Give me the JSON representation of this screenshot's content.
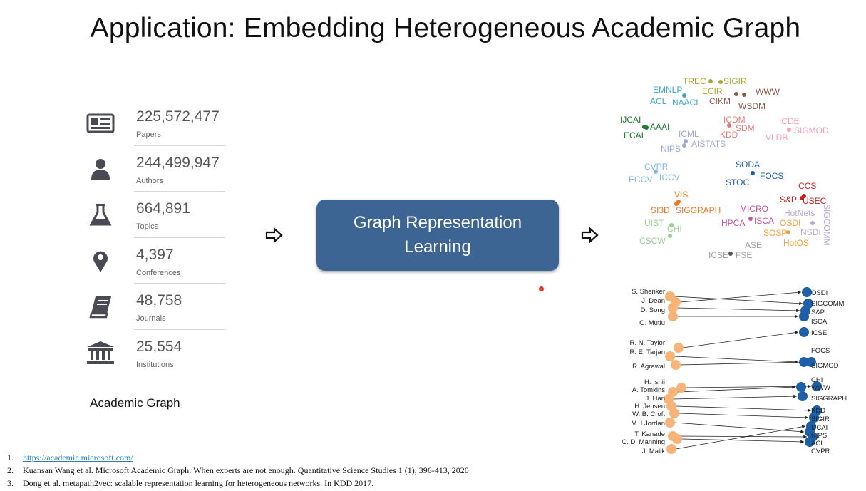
{
  "slide": {
    "title": "Application: Embedding Heterogeneous Academic Graph",
    "graph_caption": "Academic Graph",
    "center_box": {
      "line1": "Graph Representation",
      "line2": "Learning"
    }
  },
  "stats": [
    {
      "value": "225,572,477",
      "label": "Papers",
      "icon": "newspaper-icon"
    },
    {
      "value": "244,499,947",
      "label": "Authors",
      "icon": "person-icon"
    },
    {
      "value": "664,891",
      "label": "Topics",
      "icon": "flask-icon"
    },
    {
      "value": "4,397",
      "label": "Conferences",
      "icon": "location-pin-icon"
    },
    {
      "value": "48,758",
      "label": "Journals",
      "icon": "book-icon"
    },
    {
      "value": "25,554",
      "label": "Institutions",
      "icon": "institution-icon"
    }
  ],
  "scatter_labels": [
    {
      "text": "TREC",
      "color": "#a8a830"
    },
    {
      "text": "SIGIR",
      "color": "#a8a830"
    },
    {
      "text": "EMNLP",
      "color": "#3aa8c8"
    },
    {
      "text": "ECIR",
      "color": "#a8a830"
    },
    {
      "text": "WWW",
      "color": "#8b5a4a"
    },
    {
      "text": "ACL",
      "color": "#3aa8c8"
    },
    {
      "text": "NAACL",
      "color": "#3aa8c8"
    },
    {
      "text": "CIKM",
      "color": "#8b5a4a"
    },
    {
      "text": "WSDM",
      "color": "#8b5a4a"
    },
    {
      "text": "IJCAI",
      "color": "#1e7a2e"
    },
    {
      "text": "AAAI",
      "color": "#1e7a2e"
    },
    {
      "text": "ECAI",
      "color": "#1e7a2e"
    },
    {
      "text": "ICDM",
      "color": "#e87878"
    },
    {
      "text": "SDM",
      "color": "#e87878"
    },
    {
      "text": "KDD",
      "color": "#e87878"
    },
    {
      "text": "ICDE",
      "color": "#f0a0b8"
    },
    {
      "text": "SIGMOD",
      "color": "#f0a0b8"
    },
    {
      "text": "VLDB",
      "color": "#f0a0b8"
    },
    {
      "text": "ICML",
      "color": "#a0a8d8"
    },
    {
      "text": "AISTATS",
      "color": "#a0a8d8"
    },
    {
      "text": "NIPS",
      "color": "#a0a8d8"
    },
    {
      "text": "CVPR",
      "color": "#7ab8e0"
    },
    {
      "text": "ECCV",
      "color": "#7ab8e0"
    },
    {
      "text": "ICCV",
      "color": "#7ab8e0"
    },
    {
      "text": "SODA",
      "color": "#1f5fa8"
    },
    {
      "text": "FOCS",
      "color": "#1f5fa8"
    },
    {
      "text": "STOC",
      "color": "#1f5fa8"
    },
    {
      "text": "CCS",
      "color": "#c81e1e"
    },
    {
      "text": "S&P",
      "color": "#c81e1e"
    },
    {
      "text": "USEC",
      "color": "#c81e1e"
    },
    {
      "text": "VIS",
      "color": "#f07820"
    },
    {
      "text": "SI3D",
      "color": "#f07820"
    },
    {
      "text": "SIGGRAPH",
      "color": "#f07820"
    },
    {
      "text": "MICRO",
      "color": "#c850a0"
    },
    {
      "text": "HPCA",
      "color": "#c850a0"
    },
    {
      "text": "ISCA",
      "color": "#c850a0"
    },
    {
      "text": "HotNets",
      "color": "#b8a8d0"
    },
    {
      "text": "SIGCOMM",
      "color": "#b8a8d0"
    },
    {
      "text": "NSDI",
      "color": "#b8a8d0"
    },
    {
      "text": "OSDI",
      "color": "#f0a040"
    },
    {
      "text": "SOSP",
      "color": "#f0a040"
    },
    {
      "text": "HotOS",
      "color": "#f0a040"
    },
    {
      "text": "UIST",
      "color": "#98d090"
    },
    {
      "text": "CHI",
      "color": "#98d090"
    },
    {
      "text": "CSCW",
      "color": "#98d090"
    },
    {
      "text": "ASE",
      "color": "#a0a0a0"
    },
    {
      "text": "ICSE",
      "color": "#a0a0a0"
    },
    {
      "text": "FSE",
      "color": "#a0a0a0"
    }
  ],
  "bipartite": {
    "authors": [
      "S. Shenker",
      "J. Dean",
      "D. Song",
      "O. Mutlu",
      "R. N. Taylor",
      "R. E. Tarjan",
      "R. Agrawal",
      "H. Ishii",
      "A. Tomkins",
      "J. Han",
      "H. Jensen",
      "W. B. Croft",
      "M. I.Jordan",
      "T. Kanade",
      "C. D. Manning",
      "J. Malik"
    ],
    "venues": [
      "OSDI",
      "SIGCOMM",
      "S&P",
      "ISCA",
      "ICSE",
      "FOCS",
      "SIGMOD",
      "CHI",
      "WWW",
      "SIGGRAPH",
      "KDD",
      "SIGIR",
      "IJCAI",
      "NIPS",
      "ACL",
      "CVPR"
    ],
    "author_color": "#f8b478",
    "venue_color": "#1f5fa8"
  },
  "references": [
    {
      "num": "1.",
      "text": "https://academic.microsoft.com/",
      "link": true
    },
    {
      "num": "2.",
      "text": "Kuansan Wang et al. Microsoft Academic Graph: When experts are not enough. Quantitative Science Studies 1 (1), 396-413, 2020",
      "link": false
    },
    {
      "num": "3.",
      "text": "Dong et al. metapath2vec: scalable representation learning for heterogeneous networks. In KDD 2017.",
      "link": false
    }
  ]
}
